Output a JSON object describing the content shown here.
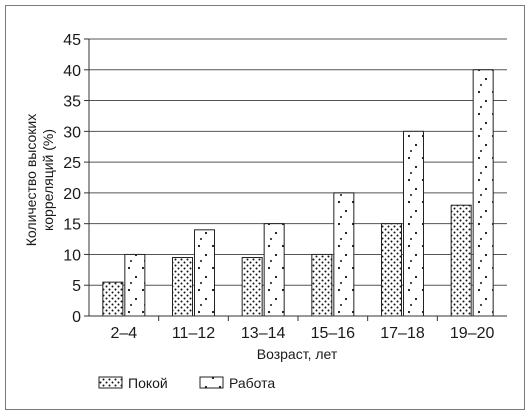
{
  "chart_data": {
    "type": "bar",
    "title": "",
    "xlabel": "Возраст, лет",
    "ylabel": "Количество высоких корреляций (%)",
    "ylabel_lines": [
      "Количество высоких",
      "корреляций (%)"
    ],
    "categories": [
      "2–4",
      "11–12",
      "13–14",
      "15–16",
      "17–18",
      "19–20"
    ],
    "series": [
      {
        "name": "Покой",
        "values": [
          5.5,
          9.5,
          9.5,
          10,
          15,
          18
        ],
        "pattern": "dense-dots"
      },
      {
        "name": "Работа",
        "values": [
          10,
          14,
          15,
          20,
          30,
          40
        ],
        "pattern": "sparse-dots"
      }
    ],
    "ylim": [
      0,
      45
    ],
    "yticks": [
      0,
      5,
      10,
      15,
      20,
      25,
      30,
      35,
      40,
      45
    ],
    "grid": true,
    "legend_position": "bottom-left"
  }
}
